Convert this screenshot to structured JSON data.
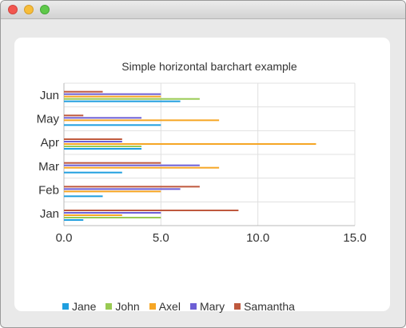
{
  "window": {
    "title": ""
  },
  "colors": {
    "Jane": "#209fdf",
    "John": "#99ca53",
    "Axel": "#f6a625",
    "Mary": "#6d5fd5",
    "Samantha": "#bf593e"
  },
  "chart_data": {
    "type": "bar",
    "orientation": "horizontal",
    "title": "Simple horizontal barchart example",
    "categories": [
      "Jan",
      "Feb",
      "Mar",
      "Apr",
      "May",
      "Jun"
    ],
    "series": [
      {
        "name": "Jane",
        "values": [
          1,
          2,
          3,
          4,
          5,
          6
        ]
      },
      {
        "name": "John",
        "values": [
          5,
          0,
          0,
          4,
          0,
          7
        ]
      },
      {
        "name": "Axel",
        "values": [
          3,
          5,
          8,
          13,
          8,
          5
        ]
      },
      {
        "name": "Mary",
        "values": [
          5,
          6,
          7,
          3,
          4,
          5
        ]
      },
      {
        "name": "Samantha",
        "values": [
          9,
          7,
          5,
          3,
          1,
          2
        ]
      }
    ],
    "x_ticks": [
      "0.0",
      "5.0",
      "10.0",
      "15.0"
    ],
    "xlim": [
      0,
      15
    ],
    "grid": true,
    "legend_position": "bottom"
  }
}
